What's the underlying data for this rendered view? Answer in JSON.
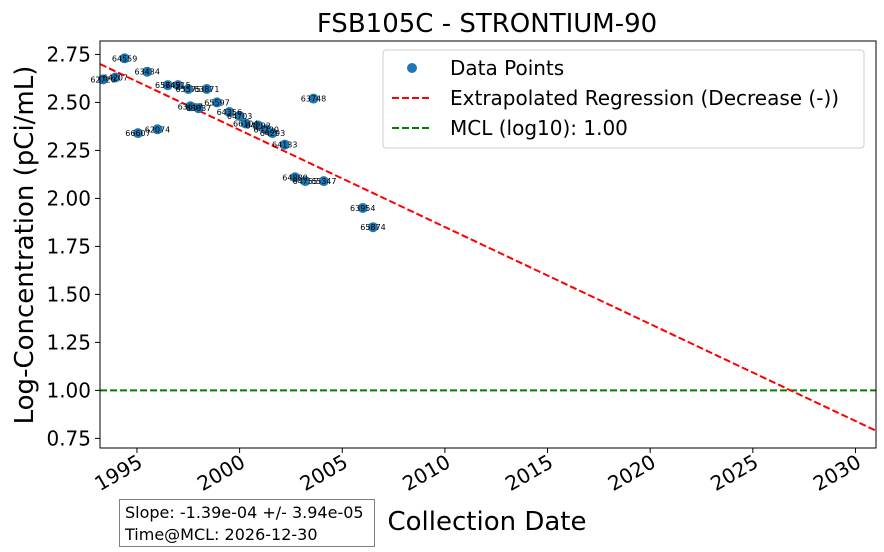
{
  "chart_data": {
    "type": "scatter",
    "title": "FSB105C - STRONTIUM-90",
    "xlabel": "Collection Date",
    "ylabel": "Log-Concentration (pCi/mL)",
    "xlim": [
      1993.2,
      2031.0
    ],
    "ylim": [
      0.7,
      2.82
    ],
    "x_ticks": [
      1995,
      2000,
      2005,
      2010,
      2015,
      2020,
      2025,
      2030
    ],
    "y_ticks": [
      "0.75",
      "1.00",
      "1.25",
      "1.50",
      "1.75",
      "2.00",
      "2.25",
      "2.50",
      "2.75"
    ],
    "grid": false,
    "legend_position": "top-right",
    "legend": {
      "data_points": "Data Points",
      "regression": "Extrapolated Regression (Decrease (-))",
      "mcl": "MCL (log10): 1.00"
    },
    "colors": {
      "points": "#1f77b4",
      "regression": "#ff0000",
      "mcl": "#008000"
    },
    "points": [
      {
        "x": 1993.35,
        "y": 2.62,
        "label": "62720"
      },
      {
        "x": 1993.95,
        "y": 2.63,
        "label": "64207"
      },
      {
        "x": 1994.4,
        "y": 2.73,
        "label": "64559"
      },
      {
        "x": 1995.5,
        "y": 2.66,
        "label": "63434"
      },
      {
        "x": 1996.5,
        "y": 2.59,
        "label": "65745"
      },
      {
        "x": 1997.0,
        "y": 2.59,
        "label": "64915"
      },
      {
        "x": 1997.5,
        "y": 2.57,
        "label": "65575"
      },
      {
        "x": 1998.4,
        "y": 2.57,
        "label": "63871"
      },
      {
        "x": 1997.6,
        "y": 2.48,
        "label": "63657"
      },
      {
        "x": 1998.0,
        "y": 2.47,
        "label": "63837"
      },
      {
        "x": 1998.9,
        "y": 2.5,
        "label": "65597"
      },
      {
        "x": 1999.5,
        "y": 2.45,
        "label": "64356"
      },
      {
        "x": 2000.0,
        "y": 2.43,
        "label": "64703"
      },
      {
        "x": 2000.3,
        "y": 2.39,
        "label": "66104"
      },
      {
        "x": 2000.9,
        "y": 2.38,
        "label": "64292"
      },
      {
        "x": 2001.3,
        "y": 2.36,
        "label": "64220"
      },
      {
        "x": 2001.6,
        "y": 2.34,
        "label": "64293"
      },
      {
        "x": 2002.2,
        "y": 2.28,
        "label": "64133"
      },
      {
        "x": 1995.05,
        "y": 2.34,
        "label": "66607"
      },
      {
        "x": 1996.0,
        "y": 2.36,
        "label": "62074"
      },
      {
        "x": 2002.7,
        "y": 2.11,
        "label": "64880"
      },
      {
        "x": 2003.2,
        "y": 2.09,
        "label": "64755"
      },
      {
        "x": 2004.1,
        "y": 2.09,
        "label": "65347"
      },
      {
        "x": 2003.6,
        "y": 2.52,
        "label": "63748"
      },
      {
        "x": 2006.0,
        "y": 1.95,
        "label": "63954"
      },
      {
        "x": 2006.5,
        "y": 1.85,
        "label": "65874"
      }
    ],
    "regression": {
      "x": [
        1993.2,
        2031.0
      ],
      "y": [
        2.7,
        0.79
      ]
    },
    "mcl": 1.0
  },
  "stats": {
    "slope": "Slope: -1.39e-04 +/- 3.94e-05",
    "time_at_mcl": "Time@MCL: 2026-12-30"
  }
}
